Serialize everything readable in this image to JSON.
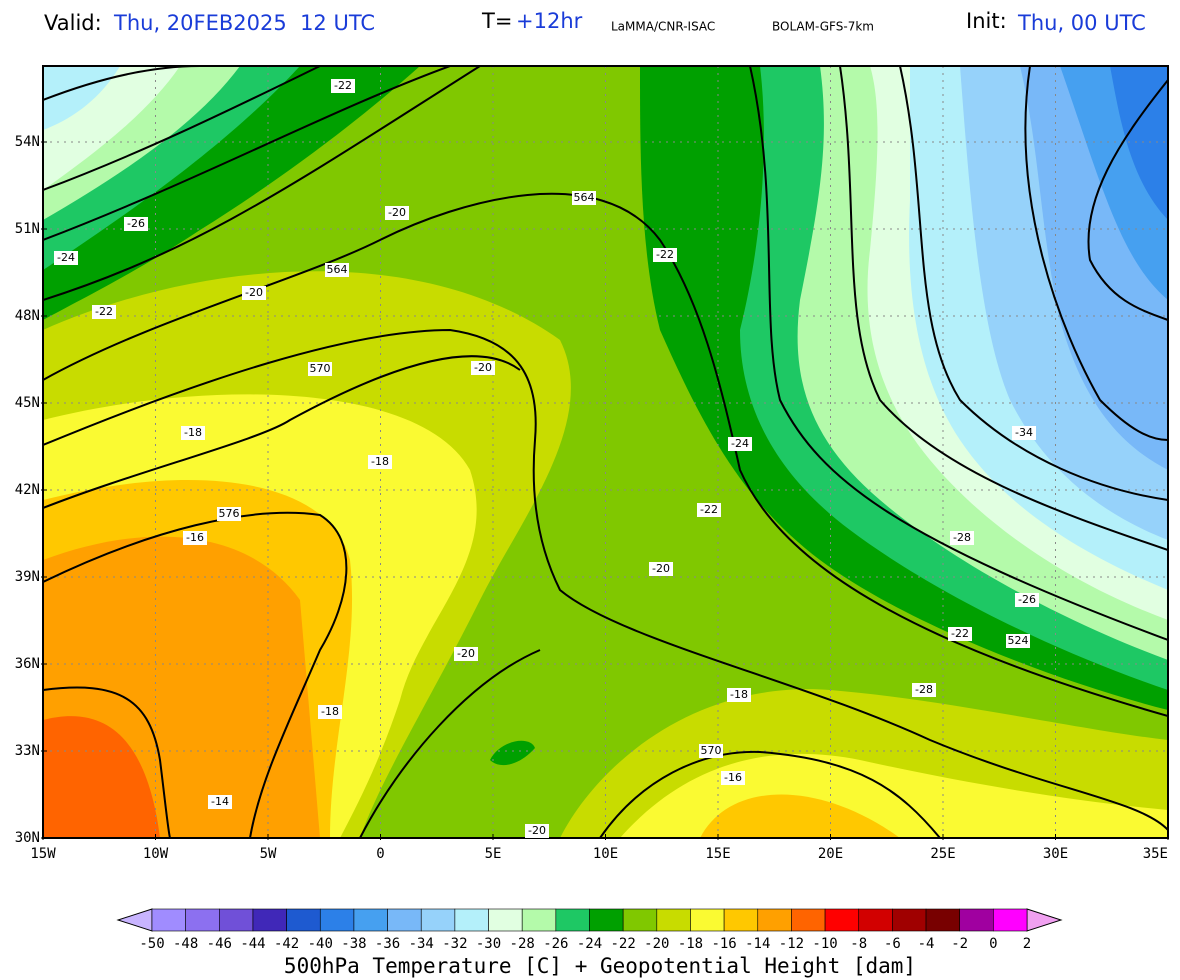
{
  "header": {
    "valid_label": "Valid:",
    "valid_value": "Thu, 20FEB2025  12 UTC",
    "t_label": "T=",
    "t_value": "+12hr",
    "source": "LaMMA/CNR-ISAC",
    "model": "BOLAM-GFS-7km",
    "init_label": "Init:",
    "init_value": "Thu, 00 UTC"
  },
  "map": {
    "lat_labels": [
      "54N",
      "51N",
      "48N",
      "45N",
      "42N",
      "39N",
      "36N",
      "33N",
      "30N"
    ],
    "lon_labels": [
      "15W",
      "10W",
      "5W",
      "0",
      "5E",
      "10E",
      "15E",
      "20E",
      "25E",
      "30E",
      "35E"
    ],
    "contour_labels": [
      "-22",
      "-26",
      "-24",
      "-22",
      "-20",
      "-20",
      "564",
      "564",
      "-22",
      "570",
      "-20",
      "-18",
      "-18",
      "576",
      "-16",
      "-24",
      "-22",
      "-20",
      "-28",
      "-26",
      "-22",
      "524",
      "-20",
      "-18",
      "-28",
      "-18",
      "570",
      "-16",
      "-14",
      "-20",
      "-34"
    ]
  },
  "colorbar": {
    "labels": [
      "-50",
      "-48",
      "-46",
      "-44",
      "-42",
      "-40",
      "-38",
      "-36",
      "-34",
      "-32",
      "-30",
      "-28",
      "-26",
      "-24",
      "-22",
      "-20",
      "-18",
      "-16",
      "-14",
      "-12",
      "-10",
      "-8",
      "-6",
      "-4",
      "-2",
      "0",
      "2"
    ],
    "under_color": "#c8b4ff",
    "over_color": "#f0a0f0",
    "colors": [
      "#a08cff",
      "#8c70f0",
      "#7050d8",
      "#4028b8",
      "#1e5ad0",
      "#2c80e8",
      "#46a0f0",
      "#78b8f8",
      "#96d2fa",
      "#b4f0fa",
      "#e1ffe1",
      "#b4faaa",
      "#1ec864",
      "#00a000",
      "#80c800",
      "#c8dc00",
      "#fafa32",
      "#ffc800",
      "#ffa000",
      "#ff6400",
      "#ff0000",
      "#d20000",
      "#a00000",
      "#780000",
      "#a000a0",
      "#ff00ff"
    ],
    "title": "500hPa Temperature [C] + Geopotential Height [dam]"
  }
}
